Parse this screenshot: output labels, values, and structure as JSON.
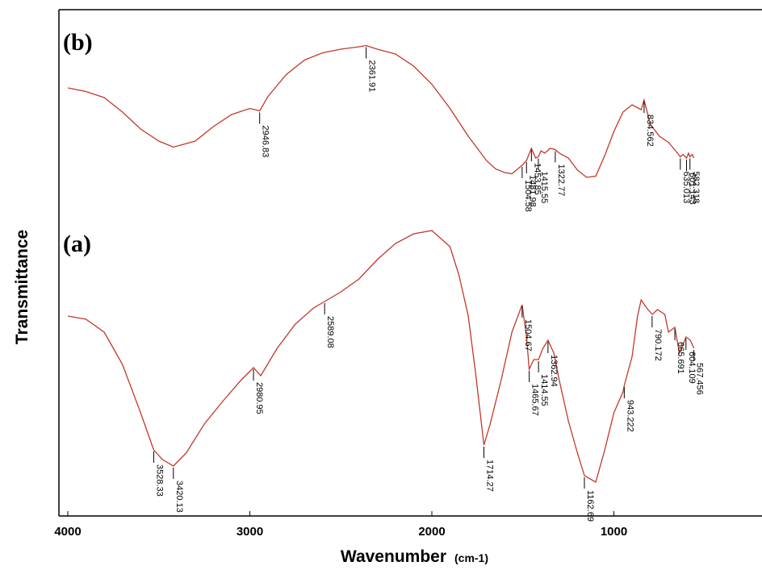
{
  "chart_data": {
    "type": "line",
    "title": "",
    "xlabel": "Wavenumber",
    "xlabel_unit": "(cm-1)",
    "ylabel": "Transmittance",
    "xlim": [
      4000,
      0
    ],
    "x_reversed": true,
    "x_ticks": [
      "4000",
      "3000",
      "2000",
      "1000"
    ],
    "grid": false,
    "y_ticks": [],
    "line_color": "#c0392b",
    "panels": [
      {
        "label": "(b)",
        "series": [
          {
            "x": [
              4000,
              3900,
              3800,
              3700,
              3600,
              3500,
              3420,
              3300,
              3200,
              3100,
              3000,
              2946,
              2900,
              2800,
              2700,
              2600,
              2500,
              2400,
              2361,
              2300,
              2200,
              2100,
              2000,
              1900,
              1800,
              1700,
              1650,
              1600,
              1560,
              1504,
              1480,
              1453,
              1430,
              1415,
              1400,
              1380,
              1350,
              1322,
              1300,
              1250,
              1200,
              1150,
              1100,
              1050,
              1000,
              950,
              900,
              850,
              834,
              800,
              750,
              700,
              650,
              635,
              620,
              601,
              590,
              582,
              570,
              560
            ],
            "y": [
              72,
              69,
              64,
              52,
              38,
              28,
              23,
              28,
              40,
              50,
              55,
              53,
              65,
              83,
              95,
              101,
              104,
              106,
              107,
              104,
              100,
              90,
              75,
              55,
              32,
              12,
              5,
              2,
              1,
              8,
              12,
              22,
              14,
              15,
              20,
              18,
              22,
              21,
              18,
              14,
              4,
              -2,
              -1,
              16,
              36,
              52,
              58,
              54,
              62,
              42,
              32,
              27,
              18,
              15,
              17,
              14,
              18,
              15,
              17,
              14
            ]
          }
        ],
        "annotations": [
          {
            "x": 2946,
            "text": "2946.83"
          },
          {
            "x": 2361,
            "text": "2361.91"
          },
          {
            "x": 1504,
            "text": "1504.58"
          },
          {
            "x": 1480,
            "text": "1481.98"
          },
          {
            "x": 1453,
            "text": "1453.85"
          },
          {
            "x": 1415,
            "text": "1415.55"
          },
          {
            "x": 1322,
            "text": "1322.77"
          },
          {
            "x": 834,
            "text": "834.562"
          },
          {
            "x": 635,
            "text": "635.013"
          },
          {
            "x": 601,
            "text": "601.143"
          },
          {
            "x": 582,
            "text": "582.318"
          }
        ]
      },
      {
        "label": "(a)",
        "series": [
          {
            "x": [
              4000,
              3900,
              3800,
              3700,
              3600,
              3528,
              3480,
              3420,
              3350,
              3250,
              3150,
              3050,
              2980,
              2940,
              2850,
              2750,
              2650,
              2589,
              2500,
              2400,
              2300,
              2200,
              2100,
              2000,
              1900,
              1850,
              1800,
              1760,
              1714,
              1680,
              1620,
              1560,
              1504,
              1480,
              1465,
              1440,
              1414,
              1390,
              1362,
              1330,
              1300,
              1250,
              1200,
              1162,
              1100,
              1050,
              1000,
              950,
              943,
              900,
              870,
              850,
              820,
              790,
              760,
              720,
              700,
              665,
              640,
              604,
              580,
              560
            ],
            "y": [
              95,
              93,
              85,
              65,
              35,
              12,
              6,
              2,
              10,
              28,
              42,
              55,
              63,
              58,
              75,
              90,
              100,
              104,
              110,
              118,
              130,
              140,
              146,
              148,
              138,
              120,
              95,
              60,
              15,
              28,
              55,
              85,
              102,
              82,
              62,
              68,
              68,
              75,
              80,
              72,
              55,
              30,
              10,
              -4,
              -8,
              12,
              35,
              48,
              52,
              70,
              95,
              105,
              100,
              96,
              99,
              96,
              85,
              88,
              72,
              82,
              80,
              75
            ]
          }
        ],
        "annotations": [
          {
            "x": 3528,
            "text": "3528.33"
          },
          {
            "x": 3420,
            "text": "3420.13"
          },
          {
            "x": 2980,
            "text": "2980.95"
          },
          {
            "x": 2589,
            "text": "2589.08"
          },
          {
            "x": 1714,
            "text": "1714.27"
          },
          {
            "x": 1504,
            "text": "1504.67"
          },
          {
            "x": 1465,
            "text": "1465.67"
          },
          {
            "x": 1414,
            "text": "1414.55"
          },
          {
            "x": 1362,
            "text": "1362.94"
          },
          {
            "x": 1162,
            "text": "1162.69"
          },
          {
            "x": 943,
            "text": "943.222"
          },
          {
            "x": 790,
            "text": "790.172"
          },
          {
            "x": 665,
            "text": "665.691"
          },
          {
            "x": 604,
            "text": "604.109"
          },
          {
            "x": 560,
            "text": "567.456"
          }
        ]
      }
    ]
  }
}
